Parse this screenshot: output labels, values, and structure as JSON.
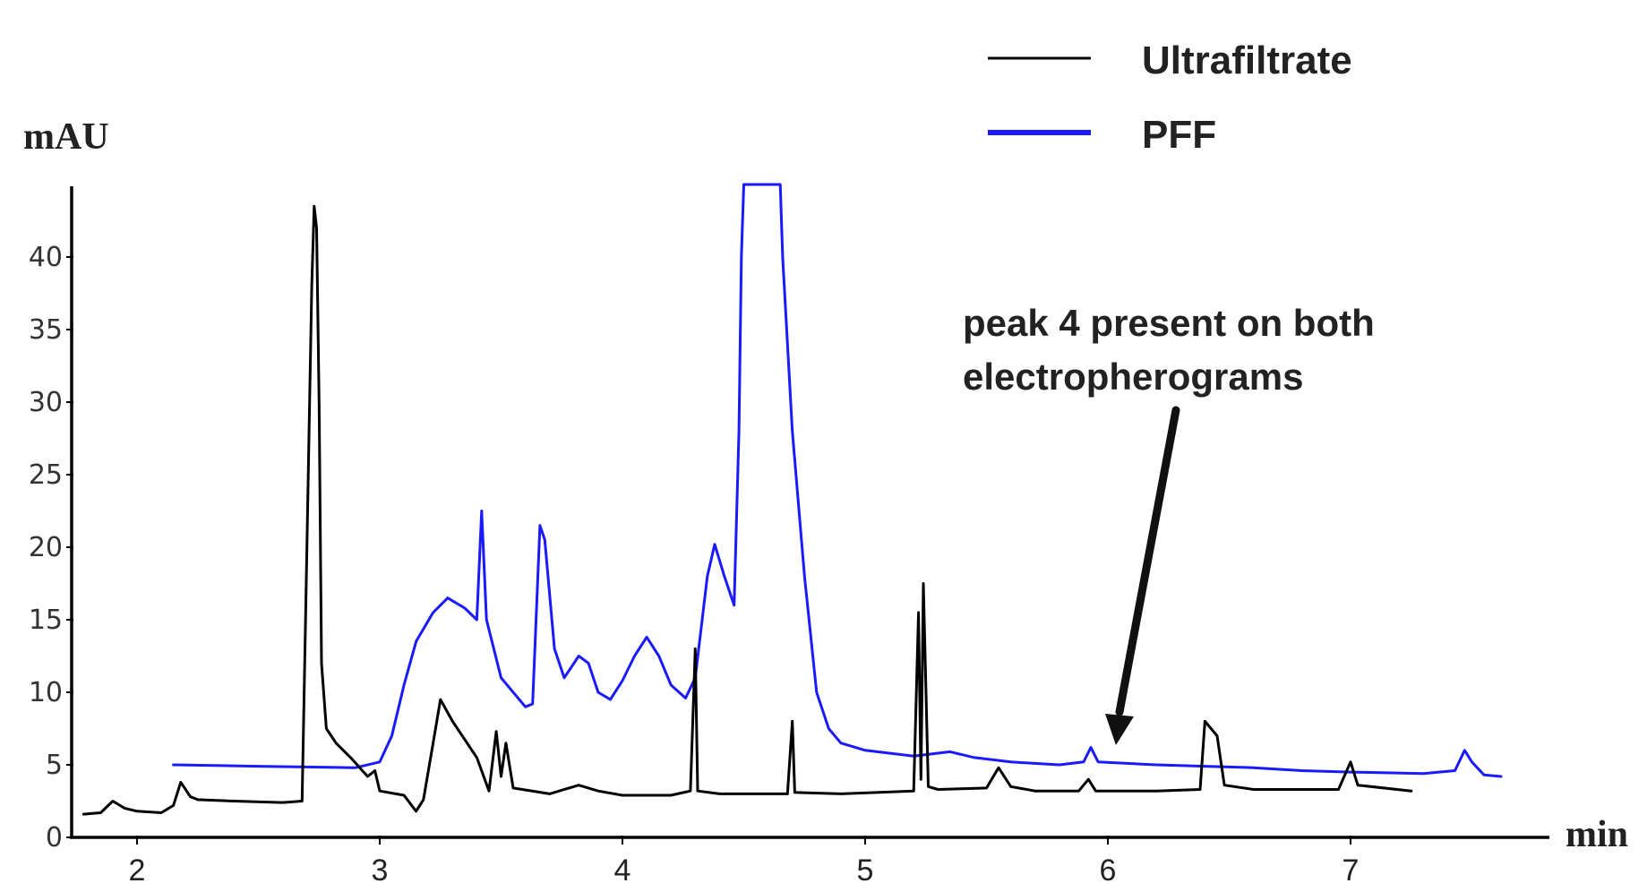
{
  "chart_data": {
    "type": "line",
    "title": "",
    "xlabel": "min",
    "ylabel": "mAU",
    "xlim": [
      1.75,
      7.8
    ],
    "ylim": [
      0,
      45
    ],
    "x_ticks": [
      2,
      3,
      4,
      5,
      6,
      7
    ],
    "y_ticks": [
      0,
      5,
      10,
      15,
      20,
      25,
      30,
      35,
      40
    ],
    "legend": {
      "position": "top-right"
    },
    "grid": false,
    "series": [
      {
        "name": "Ultrafiltrate",
        "color": "#000000",
        "points": [
          [
            1.78,
            1.6
          ],
          [
            1.85,
            1.7
          ],
          [
            1.9,
            2.5
          ],
          [
            1.95,
            2.0
          ],
          [
            2.0,
            1.8
          ],
          [
            2.1,
            1.7
          ],
          [
            2.15,
            2.2
          ],
          [
            2.18,
            3.8
          ],
          [
            2.22,
            2.8
          ],
          [
            2.25,
            2.6
          ],
          [
            2.4,
            2.5
          ],
          [
            2.6,
            2.4
          ],
          [
            2.68,
            2.5
          ],
          [
            2.7,
            20
          ],
          [
            2.72,
            38
          ],
          [
            2.73,
            43.5
          ],
          [
            2.74,
            42
          ],
          [
            2.75,
            30
          ],
          [
            2.76,
            12
          ],
          [
            2.78,
            7.5
          ],
          [
            2.82,
            6.5
          ],
          [
            2.88,
            5.5
          ],
          [
            2.95,
            4.2
          ],
          [
            2.98,
            4.6
          ],
          [
            3.0,
            3.2
          ],
          [
            3.1,
            2.9
          ],
          [
            3.15,
            1.8
          ],
          [
            3.18,
            2.6
          ],
          [
            3.22,
            6.5
          ],
          [
            3.25,
            9.5
          ],
          [
            3.3,
            8.0
          ],
          [
            3.4,
            5.5
          ],
          [
            3.45,
            3.2
          ],
          [
            3.48,
            7.3
          ],
          [
            3.5,
            4.2
          ],
          [
            3.52,
            6.5
          ],
          [
            3.55,
            3.4
          ],
          [
            3.7,
            3.0
          ],
          [
            3.82,
            3.6
          ],
          [
            3.9,
            3.2
          ],
          [
            4.0,
            2.9
          ],
          [
            4.2,
            2.9
          ],
          [
            4.28,
            3.2
          ],
          [
            4.3,
            13.0
          ],
          [
            4.31,
            3.2
          ],
          [
            4.4,
            3.0
          ],
          [
            4.6,
            3.0
          ],
          [
            4.68,
            3.0
          ],
          [
            4.7,
            8.0
          ],
          [
            4.71,
            3.1
          ],
          [
            4.9,
            3.0
          ],
          [
            5.2,
            3.2
          ],
          [
            5.22,
            15.5
          ],
          [
            5.23,
            4.0
          ],
          [
            5.24,
            17.5
          ],
          [
            5.26,
            3.5
          ],
          [
            5.3,
            3.3
          ],
          [
            5.5,
            3.4
          ],
          [
            5.55,
            4.8
          ],
          [
            5.6,
            3.5
          ],
          [
            5.7,
            3.2
          ],
          [
            5.88,
            3.2
          ],
          [
            5.92,
            4.0
          ],
          [
            5.95,
            3.2
          ],
          [
            6.2,
            3.2
          ],
          [
            6.38,
            3.3
          ],
          [
            6.4,
            8.0
          ],
          [
            6.45,
            7.0
          ],
          [
            6.48,
            3.6
          ],
          [
            6.6,
            3.3
          ],
          [
            6.95,
            3.3
          ],
          [
            7.0,
            5.2
          ],
          [
            7.03,
            3.6
          ],
          [
            7.25,
            3.2
          ]
        ]
      },
      {
        "name": "PFF",
        "color": "#1a1aff",
        "points": [
          [
            2.15,
            5.0
          ],
          [
            2.5,
            4.9
          ],
          [
            2.9,
            4.8
          ],
          [
            3.0,
            5.2
          ],
          [
            3.05,
            7.0
          ],
          [
            3.1,
            10.5
          ],
          [
            3.15,
            13.5
          ],
          [
            3.22,
            15.5
          ],
          [
            3.28,
            16.5
          ],
          [
            3.35,
            15.8
          ],
          [
            3.4,
            15.0
          ],
          [
            3.42,
            22.5
          ],
          [
            3.44,
            15.0
          ],
          [
            3.5,
            11.0
          ],
          [
            3.6,
            9.0
          ],
          [
            3.63,
            9.2
          ],
          [
            3.66,
            21.5
          ],
          [
            3.68,
            20.5
          ],
          [
            3.72,
            13.0
          ],
          [
            3.76,
            11.0
          ],
          [
            3.82,
            12.5
          ],
          [
            3.86,
            12.0
          ],
          [
            3.9,
            10.0
          ],
          [
            3.95,
            9.5
          ],
          [
            4.0,
            10.8
          ],
          [
            4.05,
            12.5
          ],
          [
            4.1,
            13.8
          ],
          [
            4.15,
            12.5
          ],
          [
            4.2,
            10.5
          ],
          [
            4.26,
            9.6
          ],
          [
            4.3,
            11.0
          ],
          [
            4.35,
            18.0
          ],
          [
            4.38,
            20.2
          ],
          [
            4.42,
            18.0
          ],
          [
            4.46,
            16.0
          ],
          [
            4.48,
            28.0
          ],
          [
            4.49,
            40.0
          ],
          [
            4.5,
            45.0
          ],
          [
            4.65,
            45.0
          ],
          [
            4.66,
            40.0
          ],
          [
            4.7,
            28.0
          ],
          [
            4.75,
            18.0
          ],
          [
            4.8,
            10.0
          ],
          [
            4.85,
            7.5
          ],
          [
            4.9,
            6.5
          ],
          [
            5.0,
            6.0
          ],
          [
            5.2,
            5.6
          ],
          [
            5.35,
            5.9
          ],
          [
            5.45,
            5.5
          ],
          [
            5.6,
            5.2
          ],
          [
            5.8,
            5.0
          ],
          [
            5.9,
            5.2
          ],
          [
            5.93,
            6.2
          ],
          [
            5.96,
            5.2
          ],
          [
            6.2,
            5.0
          ],
          [
            6.4,
            4.9
          ],
          [
            6.6,
            4.8
          ],
          [
            6.8,
            4.6
          ],
          [
            7.0,
            4.5
          ],
          [
            7.3,
            4.4
          ],
          [
            7.43,
            4.6
          ],
          [
            7.47,
            6.0
          ],
          [
            7.5,
            5.2
          ],
          [
            7.55,
            4.3
          ],
          [
            7.62,
            4.2
          ]
        ]
      }
    ]
  },
  "annotation": {
    "text_line1": "peak 4 present on both",
    "text_line2": "electropherograms"
  }
}
